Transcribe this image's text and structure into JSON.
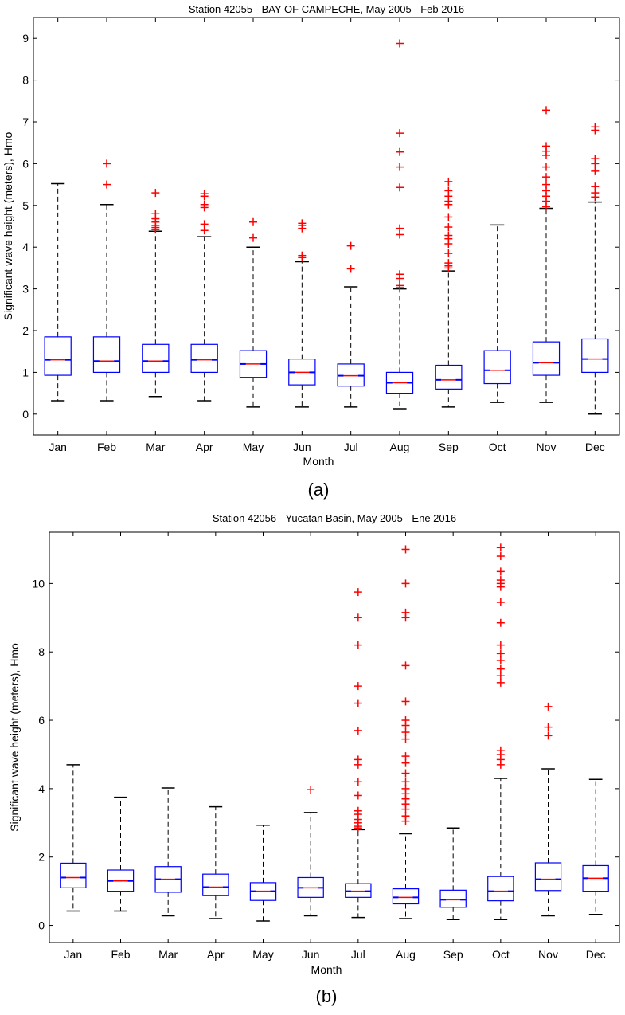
{
  "chart_data": [
    {
      "type": "box",
      "title": "Station 42055 - BAY OF CAMPECHE, May 2005 - Feb 2016",
      "xlabel": "Month",
      "ylabel": "Significant wave height (meters), Hmo",
      "caption": "(a)",
      "ylim": [
        -0.5,
        9.5
      ],
      "yticks": [
        0,
        1,
        2,
        3,
        4,
        5,
        6,
        7,
        8,
        9
      ],
      "categories": [
        "Jan",
        "Feb",
        "Mar",
        "Apr",
        "May",
        "Jun",
        "Jul",
        "Aug",
        "Sep",
        "Oct",
        "Nov",
        "Dec"
      ],
      "boxes": [
        {
          "whisker_low": 0.32,
          "q1": 0.93,
          "median": 1.3,
          "q3": 1.85,
          "whisker_high": 5.52,
          "outliers": []
        },
        {
          "whisker_low": 0.32,
          "q1": 1.0,
          "median": 1.27,
          "q3": 1.85,
          "whisker_high": 5.02,
          "outliers": [
            5.5,
            6.0
          ]
        },
        {
          "whisker_low": 0.42,
          "q1": 1.0,
          "median": 1.27,
          "q3": 1.67,
          "whisker_high": 4.38,
          "outliers": [
            4.42,
            4.47,
            4.52,
            4.6,
            4.68,
            4.8,
            5.3
          ]
        },
        {
          "whisker_low": 0.32,
          "q1": 1.0,
          "median": 1.3,
          "q3": 1.67,
          "whisker_high": 4.25,
          "outliers": [
            4.4,
            4.55,
            4.95,
            5.02,
            5.22,
            5.28
          ]
        },
        {
          "whisker_low": 0.17,
          "q1": 0.88,
          "median": 1.2,
          "q3": 1.52,
          "whisker_high": 4.0,
          "outliers": [
            4.22,
            4.6
          ]
        },
        {
          "whisker_low": 0.17,
          "q1": 0.7,
          "median": 1.0,
          "q3": 1.32,
          "whisker_high": 3.65,
          "outliers": [
            3.75,
            3.8,
            4.45,
            4.52,
            4.57
          ]
        },
        {
          "whisker_low": 0.17,
          "q1": 0.67,
          "median": 0.92,
          "q3": 1.2,
          "whisker_high": 3.05,
          "outliers": [
            3.48,
            4.03
          ]
        },
        {
          "whisker_low": 0.13,
          "q1": 0.5,
          "median": 0.75,
          "q3": 1.0,
          "whisker_high": 3.0,
          "outliers": [
            3.03,
            3.08,
            3.25,
            3.35,
            4.3,
            4.45,
            5.43,
            5.92,
            6.28,
            6.73,
            8.88
          ]
        },
        {
          "whisker_low": 0.17,
          "q1": 0.6,
          "median": 0.82,
          "q3": 1.17,
          "whisker_high": 3.43,
          "outliers": [
            3.5,
            3.55,
            3.62,
            3.85,
            4.08,
            4.2,
            4.28,
            4.48,
            4.72,
            5.02,
            5.1,
            5.22,
            5.35,
            5.57
          ]
        },
        {
          "whisker_low": 0.28,
          "q1": 0.73,
          "median": 1.05,
          "q3": 1.52,
          "whisker_high": 4.53,
          "outliers": []
        },
        {
          "whisker_low": 0.28,
          "q1": 0.93,
          "median": 1.23,
          "q3": 1.73,
          "whisker_high": 4.93,
          "outliers": [
            4.97,
            5.1,
            5.22,
            5.35,
            5.5,
            5.68,
            5.92,
            6.2,
            6.3,
            6.42,
            7.28
          ]
        },
        {
          "whisker_low": 0.0,
          "q1": 1.0,
          "median": 1.32,
          "q3": 1.8,
          "whisker_high": 5.08,
          "outliers": [
            5.2,
            5.3,
            5.45,
            5.82,
            6.0,
            6.12,
            6.8,
            6.88
          ]
        }
      ]
    },
    {
      "type": "box",
      "title": "Station 42056 - Yucatan Basin, May 2005 - Ene 2016",
      "xlabel": "Month",
      "ylabel": "Significant wave height (meters), Hmo",
      "caption": "(b)",
      "ylim": [
        -0.5,
        11.5
      ],
      "yticks": [
        0,
        2,
        4,
        6,
        8,
        10
      ],
      "categories": [
        "Jan",
        "Feb",
        "Mar",
        "Apr",
        "May",
        "Jun",
        "Jul",
        "Aug",
        "Sep",
        "Oct",
        "Nov",
        "Dec"
      ],
      "boxes": [
        {
          "whisker_low": 0.42,
          "q1": 1.1,
          "median": 1.4,
          "q3": 1.82,
          "whisker_high": 4.7,
          "outliers": []
        },
        {
          "whisker_low": 0.42,
          "q1": 1.0,
          "median": 1.3,
          "q3": 1.62,
          "whisker_high": 3.75,
          "outliers": []
        },
        {
          "whisker_low": 0.28,
          "q1": 0.97,
          "median": 1.35,
          "q3": 1.72,
          "whisker_high": 4.02,
          "outliers": []
        },
        {
          "whisker_low": 0.2,
          "q1": 0.87,
          "median": 1.12,
          "q3": 1.5,
          "whisker_high": 3.47,
          "outliers": []
        },
        {
          "whisker_low": 0.13,
          "q1": 0.73,
          "median": 1.0,
          "q3": 1.25,
          "whisker_high": 2.93,
          "outliers": []
        },
        {
          "whisker_low": 0.28,
          "q1": 0.82,
          "median": 1.1,
          "q3": 1.4,
          "whisker_high": 3.3,
          "outliers": [
            3.97
          ]
        },
        {
          "whisker_low": 0.23,
          "q1": 0.82,
          "median": 1.0,
          "q3": 1.22,
          "whisker_high": 2.8,
          "outliers": [
            2.85,
            2.9,
            3.0,
            3.1,
            3.25,
            3.35,
            3.8,
            4.2,
            4.7,
            4.85,
            5.7,
            6.5,
            7.0,
            8.2,
            9.0,
            9.75
          ]
        },
        {
          "whisker_low": 0.2,
          "q1": 0.63,
          "median": 0.82,
          "q3": 1.07,
          "whisker_high": 2.68,
          "outliers": [
            3.05,
            3.2,
            3.4,
            3.55,
            3.7,
            3.85,
            4.0,
            4.2,
            4.45,
            4.75,
            4.95,
            5.45,
            5.65,
            5.85,
            6.0,
            6.55,
            7.6,
            9.0,
            9.15,
            10.0,
            11.0
          ]
        },
        {
          "whisker_low": 0.17,
          "q1": 0.53,
          "median": 0.75,
          "q3": 1.03,
          "whisker_high": 2.85,
          "outliers": []
        },
        {
          "whisker_low": 0.17,
          "q1": 0.72,
          "median": 1.0,
          "q3": 1.43,
          "whisker_high": 4.3,
          "outliers": [
            4.7,
            4.85,
            5.0,
            5.12,
            7.1,
            7.3,
            7.5,
            7.75,
            7.95,
            8.2,
            8.85,
            9.45,
            9.9,
            10.0,
            10.1,
            10.35,
            10.8,
            11.05
          ]
        },
        {
          "whisker_low": 0.28,
          "q1": 1.02,
          "median": 1.35,
          "q3": 1.83,
          "whisker_high": 4.58,
          "outliers": [
            5.55,
            5.8,
            6.4
          ]
        },
        {
          "whisker_low": 0.32,
          "q1": 1.0,
          "median": 1.38,
          "q3": 1.75,
          "whisker_high": 4.27,
          "outliers": []
        }
      ]
    }
  ]
}
